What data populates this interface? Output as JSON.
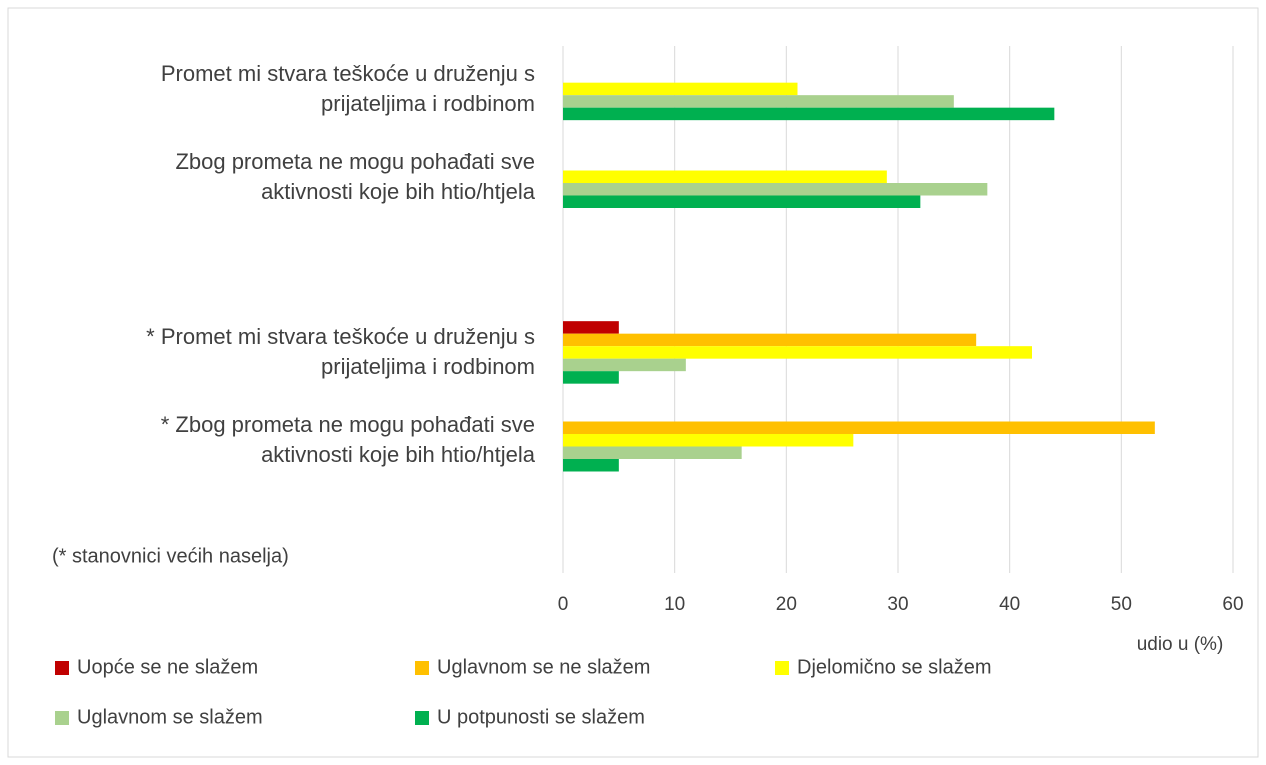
{
  "chart_data": {
    "type": "bar",
    "orientation": "horizontal",
    "categories": [
      "Promet mi stvara teškoće u druženju s\nprijateljima i rodbinom",
      "Zbog prometa ne mogu pohađati sve\naktivnosti koje bih htio/htjela",
      null,
      "* Promet mi stvara teškoće u druženju s\nprijateljima i rodbinom",
      "* Zbog prometa ne mogu pohađati sve\naktivnosti koje bih htio/htjela",
      null
    ],
    "series": [
      {
        "name": "Uopće se ne slažem",
        "color": "#c00000",
        "values": [
          null,
          null,
          null,
          5,
          null,
          null
        ]
      },
      {
        "name": "Uglavnom se ne slažem",
        "color": "#ffc000",
        "values": [
          null,
          null,
          null,
          37,
          53,
          null
        ]
      },
      {
        "name": "Djelomično se slažem",
        "color": "#ffff00",
        "values": [
          21,
          29,
          null,
          42,
          26,
          null
        ]
      },
      {
        "name": "Uglavnom se slažem",
        "color": "#a9d18e",
        "values": [
          35,
          38,
          null,
          11,
          16,
          null
        ]
      },
      {
        "name": "U potpunosti se slažem",
        "color": "#00b050",
        "values": [
          44,
          32,
          null,
          5,
          5,
          null
        ]
      }
    ],
    "xlim": [
      0,
      60
    ],
    "xticks": [
      0,
      10,
      20,
      30,
      40,
      50,
      60
    ],
    "x_label": "udio u (%)",
    "annotation": "(* stanovnici većih naselja)",
    "grid": true,
    "legend": "bottom"
  }
}
